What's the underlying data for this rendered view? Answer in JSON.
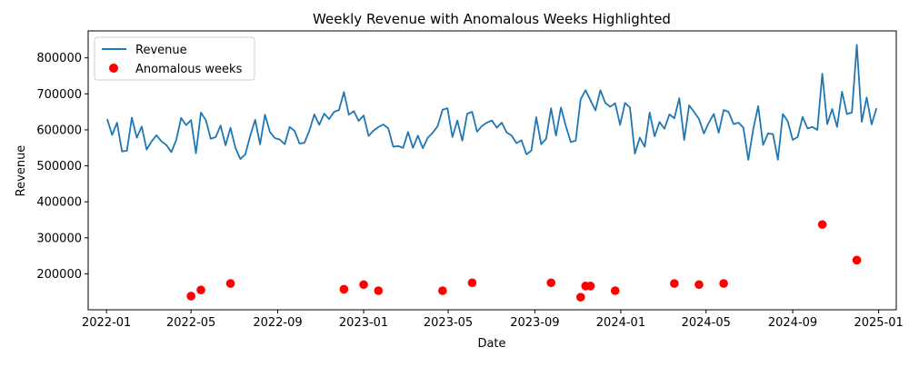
{
  "chart_data": {
    "type": "line",
    "title": "Weekly Revenue with Anomalous Weeks Highlighted",
    "xlabel": "Date",
    "ylabel": "Revenue",
    "x_ticks": [
      "2022-01",
      "2022-05",
      "2022-09",
      "2023-01",
      "2023-05",
      "2023-09",
      "2024-01",
      "2024-05",
      "2024-09",
      "2025-01"
    ],
    "x_tick_dates": [
      "2022-01-01",
      "2022-05-01",
      "2022-09-01",
      "2023-01-01",
      "2023-05-01",
      "2023-09-01",
      "2024-01-01",
      "2024-05-01",
      "2024-09-01",
      "2025-01-01"
    ],
    "xlim": [
      "2021-12-06",
      "2025-01-26"
    ],
    "y_ticks": [
      "200000",
      "300000",
      "400000",
      "500000",
      "600000",
      "700000",
      "800000"
    ],
    "y_tick_values": [
      200000,
      300000,
      400000,
      500000,
      600000,
      700000,
      800000
    ],
    "ylim": [
      100000,
      875000
    ],
    "grid": false,
    "legend_position": "upper left",
    "series": [
      {
        "name": "Revenue",
        "style": "line",
        "color": "#1f77b4",
        "x_start": "2022-01-02",
        "x_step_days": 7,
        "values": [
          630000,
          586000,
          620000,
          540000,
          542000,
          634000,
          578000,
          609000,
          545000,
          568000,
          585000,
          568000,
          558000,
          538000,
          572000,
          633000,
          613000,
          627000,
          535000,
          648000,
          627000,
          575000,
          580000,
          612000,
          557000,
          606000,
          550000,
          519000,
          532000,
          583000,
          628000,
          560000,
          642000,
          594000,
          577000,
          573000,
          560000,
          608000,
          597000,
          562000,
          564000,
          598000,
          643000,
          614000,
          645000,
          630000,
          650000,
          655000,
          705000,
          642000,
          652000,
          625000,
          640000,
          583000,
          598000,
          608000,
          615000,
          604000,
          553000,
          555000,
          550000,
          594000,
          550000,
          584000,
          549000,
          578000,
          592000,
          610000,
          656000,
          660000,
          580000,
          626000,
          570000,
          645000,
          650000,
          595000,
          611000,
          620000,
          626000,
          606000,
          620000,
          593000,
          584000,
          563000,
          571000,
          532000,
          542000,
          635000,
          560000,
          575000,
          660000,
          584000,
          662000,
          611000,
          566000,
          570000,
          685000,
          710000,
          682000,
          654000,
          710000,
          675000,
          664000,
          674000,
          614000,
          675000,
          662000,
          534000,
          578000,
          553000,
          648000,
          582000,
          622000,
          603000,
          643000,
          632000,
          688000,
          572000,
          668000,
          650000,
          630000,
          590000,
          620000,
          644000,
          592000,
          655000,
          650000,
          616000,
          620000,
          606000,
          517000,
          602000,
          666000,
          558000,
          590000,
          588000,
          517000,
          644000,
          624000,
          572000,
          580000,
          636000,
          604000,
          608000,
          600000,
          756000,
          616000,
          658000,
          608000,
          706000,
          644000,
          648000,
          836000,
          622000,
          690000,
          615000,
          660000
        ]
      },
      {
        "name": "Anomalous weeks",
        "style": "scatter",
        "color": "#ff0000",
        "points": [
          {
            "x": "2022-05-01",
            "y": 138000
          },
          {
            "x": "2022-05-15",
            "y": 155000
          },
          {
            "x": "2022-06-26",
            "y": 173000
          },
          {
            "x": "2022-12-04",
            "y": 157000
          },
          {
            "x": "2023-01-01",
            "y": 170000
          },
          {
            "x": "2023-01-22",
            "y": 153000
          },
          {
            "x": "2023-04-23",
            "y": 153000
          },
          {
            "x": "2023-06-04",
            "y": 175000
          },
          {
            "x": "2023-09-24",
            "y": 175000
          },
          {
            "x": "2023-11-05",
            "y": 135000
          },
          {
            "x": "2023-11-12",
            "y": 166000
          },
          {
            "x": "2023-11-19",
            "y": 166000
          },
          {
            "x": "2023-12-24",
            "y": 153000
          },
          {
            "x": "2024-03-17",
            "y": 173000
          },
          {
            "x": "2024-04-21",
            "y": 170000
          },
          {
            "x": "2024-05-26",
            "y": 173000
          },
          {
            "x": "2024-10-13",
            "y": 337000
          },
          {
            "x": "2024-12-01",
            "y": 238000
          }
        ]
      }
    ]
  }
}
